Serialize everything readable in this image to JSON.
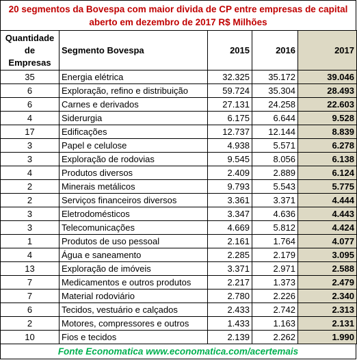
{
  "title": [
    "20 segmentos da Bovespa com maior divida de CP entre empresas de capital",
    "aberto em dezembro de 2017 R$ Milhões"
  ],
  "table": {
    "header": [
      "Quantidade de Empresas",
      "Segmento Bovespa",
      "2015",
      "2016",
      "2017"
    ],
    "rows": [
      [
        "35",
        "Energia elétrica",
        "32.325",
        "35.172",
        "39.046"
      ],
      [
        "6",
        "Exploração, refino e distribuição",
        "59.724",
        "35.304",
        "28.493"
      ],
      [
        "6",
        "Carnes e derivados",
        "27.131",
        "24.258",
        "22.603"
      ],
      [
        "4",
        "Siderurgia",
        "6.175",
        "6.644",
        "9.528"
      ],
      [
        "17",
        "Edificações",
        "12.737",
        "12.144",
        "8.839"
      ],
      [
        "3",
        "Papel e celulose",
        "4.938",
        "5.571",
        "6.278"
      ],
      [
        "3",
        "Exploração de rodovias",
        "9.545",
        "8.056",
        "6.138"
      ],
      [
        "4",
        "Produtos diversos",
        "2.409",
        "2.889",
        "6.124"
      ],
      [
        "2",
        "Minerais metálicos",
        "9.793",
        "5.543",
        "5.775"
      ],
      [
        "2",
        "Serviços financeiros diversos",
        "3.361",
        "3.371",
        "4.444"
      ],
      [
        "3",
        "Eletrodomésticos",
        "3.347",
        "4.636",
        "4.443"
      ],
      [
        "3",
        "Telecomunicações",
        "4.669",
        "5.812",
        "4.424"
      ],
      [
        "1",
        "Produtos de uso pessoal",
        "2.161",
        "1.764",
        "4.077"
      ],
      [
        "4",
        "Água e saneamento",
        "2.285",
        "2.179",
        "3.095"
      ],
      [
        "13",
        "Exploração de imóveis",
        "3.371",
        "2.971",
        "2.588"
      ],
      [
        "7",
        "Medicamentos e outros produtos",
        "2.217",
        "1.373",
        "2.479"
      ],
      [
        "7",
        "Material rodoviário",
        "2.780",
        "2.226",
        "2.340"
      ],
      [
        "6",
        "Tecidos, vestuário e calçados",
        "2.433",
        "2.742",
        "2.313"
      ],
      [
        "2",
        "Motores, compressores e outros",
        "1.433",
        "1.163",
        "2.131"
      ],
      [
        "10",
        "Fios e tecidos",
        "2.139",
        "2.262",
        "1.990"
      ]
    ]
  },
  "footer": "Fonte Economatica www.economatica.com/acertemais"
}
